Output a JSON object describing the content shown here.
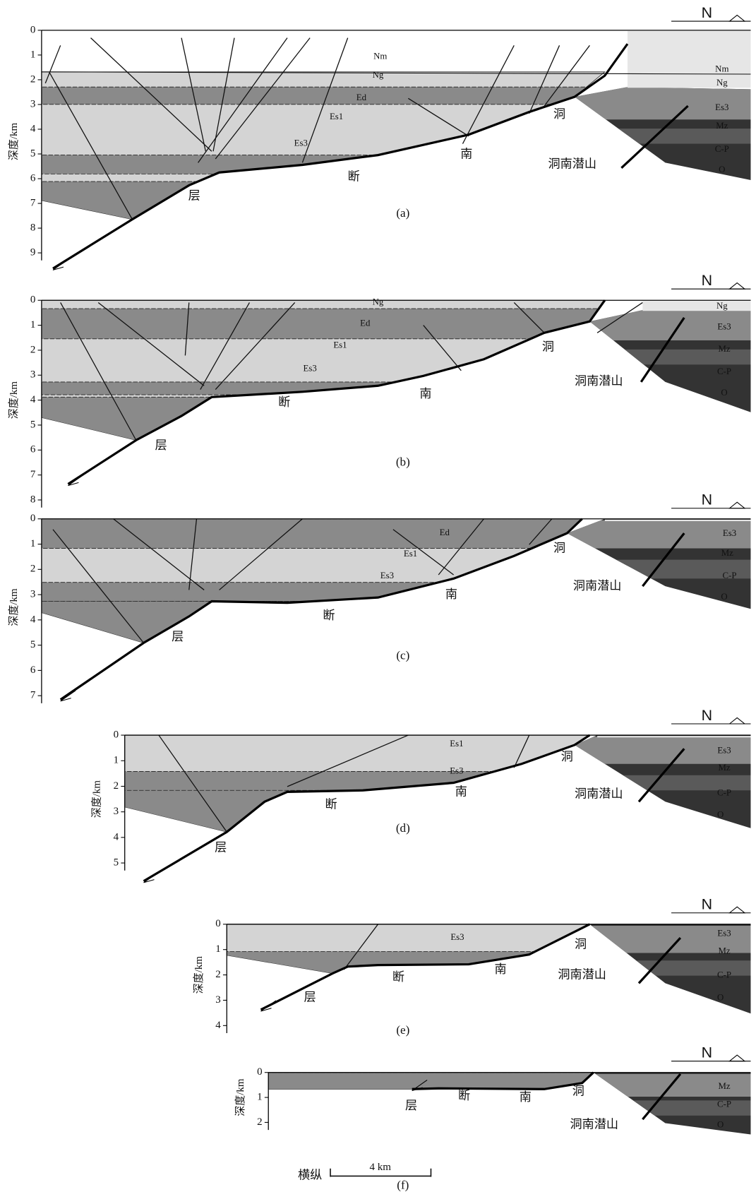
{
  "panels": [
    {
      "label": "(a)",
      "north": "N",
      "axis_title": "深度/km",
      "ticks": [
        0,
        1,
        2,
        3,
        4,
        5,
        6,
        7,
        8,
        9
      ],
      "labels": [
        "Nm",
        "Ng",
        "Ed",
        "Es1",
        "Es3",
        "Nm",
        "Ng",
        "Es3",
        "Mz",
        "C-P",
        "O",
        "洞",
        "南",
        "断",
        "层",
        "洞南潜山"
      ]
    },
    {
      "label": "(b)",
      "north": "N",
      "axis_title": "深度/km",
      "ticks": [
        0,
        1,
        2,
        3,
        4,
        5,
        6,
        7,
        8
      ],
      "labels": [
        "Ng",
        "Ed",
        "Es1",
        "Es3",
        "Ng",
        "Es3",
        "Mz",
        "C-P",
        "O",
        "洞",
        "南",
        "断",
        "层",
        "洞南潜山"
      ]
    },
    {
      "label": "(c)",
      "north": "N",
      "axis_title": "深度/km",
      "ticks": [
        0,
        1,
        2,
        3,
        4,
        5,
        6,
        7
      ],
      "labels": [
        "Ed",
        "Es1",
        "Es3",
        "Es3",
        "Mz",
        "C-P",
        "O",
        "洞",
        "南",
        "断",
        "层",
        "洞南潜山"
      ]
    },
    {
      "label": "(d)",
      "north": "N",
      "axis_title": "深度/km",
      "ticks": [
        0,
        1,
        2,
        3,
        4,
        5
      ],
      "labels": [
        "Es1",
        "Es3",
        "Es3",
        "Mz",
        "C-P",
        "O",
        "洞",
        "南",
        "断",
        "层",
        "洞南潜山"
      ]
    },
    {
      "label": "(e)",
      "north": "N",
      "axis_title": "深度/km",
      "ticks": [
        0,
        1,
        2,
        3,
        4
      ],
      "labels": [
        "Es3",
        "Es3",
        "Mz",
        "C-P",
        "O",
        "洞",
        "南",
        "断",
        "层",
        "洞南潜山"
      ]
    },
    {
      "label": "(f)",
      "north": "N",
      "axis_title": "深度/km",
      "ticks": [
        0,
        1,
        2
      ],
      "labels": [
        "Mz",
        "C-P",
        "O",
        "洞",
        "南",
        "断",
        "层",
        "洞南潜山"
      ]
    }
  ],
  "scale_bar": {
    "label": "横纵",
    "length": "4 km"
  }
}
